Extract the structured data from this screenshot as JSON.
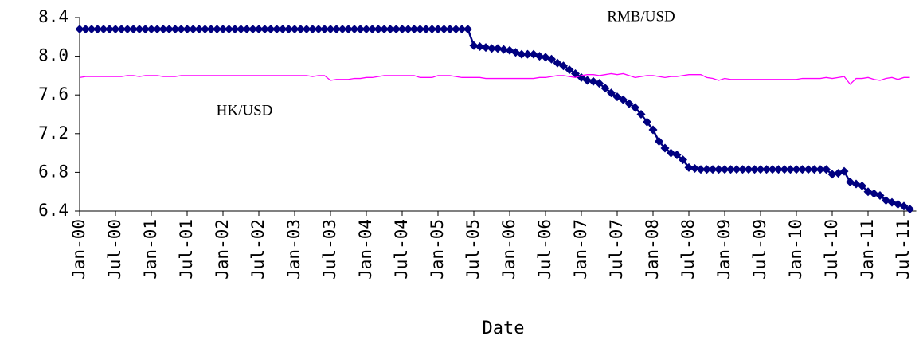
{
  "chart_data": {
    "type": "line",
    "x_label": "Date",
    "annotations": [
      "RMB/USD",
      "HK/USD"
    ],
    "categories": [
      "Jan-00",
      null,
      null,
      null,
      null,
      null,
      "Jul-00",
      null,
      null,
      null,
      null,
      null,
      "Jan-01",
      null,
      null,
      null,
      null,
      null,
      "Jul-01",
      null,
      null,
      null,
      null,
      null,
      "Jan-02",
      null,
      null,
      null,
      null,
      null,
      "Jul-02",
      null,
      null,
      null,
      null,
      null,
      "Jan-03",
      null,
      null,
      null,
      null,
      null,
      "Jul-03",
      null,
      null,
      null,
      null,
      null,
      "Jan-04",
      null,
      null,
      null,
      null,
      null,
      "Jul-04",
      null,
      null,
      null,
      null,
      null,
      "Jan-05",
      null,
      null,
      null,
      null,
      null,
      "Jul-05",
      null,
      null,
      null,
      null,
      null,
      "Jan-06",
      null,
      null,
      null,
      null,
      null,
      "Jul-06",
      null,
      null,
      null,
      null,
      null,
      "Jan-07",
      null,
      null,
      null,
      null,
      null,
      "Jul-07",
      null,
      null,
      null,
      null,
      null,
      "Jan-08",
      null,
      null,
      null,
      null,
      null,
      "Jul-08",
      null,
      null,
      null,
      null,
      null,
      "Jan-09",
      null,
      null,
      null,
      null,
      null,
      "Jul-09",
      null,
      null,
      null,
      null,
      null,
      "Jan-10",
      null,
      null,
      null,
      null,
      null,
      "Jul-10",
      null,
      null,
      null,
      null,
      null,
      "Jan-11",
      null,
      null,
      null,
      null,
      null,
      "Jul-11",
      null
    ],
    "series": [
      {
        "name": "RMB/USD",
        "color": "#000080",
        "marker": "diamond",
        "values": [
          8.28,
          8.28,
          8.28,
          8.28,
          8.28,
          8.28,
          8.28,
          8.28,
          8.28,
          8.28,
          8.28,
          8.28,
          8.28,
          8.28,
          8.28,
          8.28,
          8.28,
          8.28,
          8.28,
          8.28,
          8.28,
          8.28,
          8.28,
          8.28,
          8.28,
          8.28,
          8.28,
          8.28,
          8.28,
          8.28,
          8.28,
          8.28,
          8.28,
          8.28,
          8.28,
          8.28,
          8.28,
          8.28,
          8.28,
          8.28,
          8.28,
          8.28,
          8.28,
          8.28,
          8.28,
          8.28,
          8.28,
          8.28,
          8.28,
          8.28,
          8.28,
          8.28,
          8.28,
          8.28,
          8.28,
          8.28,
          8.28,
          8.28,
          8.28,
          8.28,
          8.28,
          8.28,
          8.28,
          8.28,
          8.28,
          8.28,
          8.11,
          8.1,
          8.09,
          8.08,
          8.08,
          8.07,
          8.06,
          8.04,
          8.02,
          8.02,
          8.02,
          8.0,
          7.99,
          7.97,
          7.93,
          7.9,
          7.86,
          7.82,
          7.78,
          7.75,
          7.74,
          7.72,
          7.67,
          7.62,
          7.58,
          7.55,
          7.51,
          7.47,
          7.4,
          7.32,
          7.24,
          7.12,
          7.05,
          7.0,
          6.98,
          6.93,
          6.85,
          6.84,
          6.83,
          6.83,
          6.83,
          6.83,
          6.83,
          6.83,
          6.83,
          6.83,
          6.83,
          6.83,
          6.83,
          6.83,
          6.83,
          6.83,
          6.83,
          6.83,
          6.83,
          6.83,
          6.83,
          6.83,
          6.83,
          6.83,
          6.78,
          6.79,
          6.81,
          6.7,
          6.68,
          6.66,
          6.6,
          6.58,
          6.56,
          6.51,
          6.49,
          6.47,
          6.45,
          6.42
        ]
      },
      {
        "name": "HK/USD",
        "color": "#ff00ff",
        "marker": "none",
        "values": [
          7.78,
          7.79,
          7.79,
          7.79,
          7.79,
          7.79,
          7.79,
          7.79,
          7.8,
          7.8,
          7.79,
          7.8,
          7.8,
          7.8,
          7.79,
          7.79,
          7.79,
          7.8,
          7.8,
          7.8,
          7.8,
          7.8,
          7.8,
          7.8,
          7.8,
          7.8,
          7.8,
          7.8,
          7.8,
          7.8,
          7.8,
          7.8,
          7.8,
          7.8,
          7.8,
          7.8,
          7.8,
          7.8,
          7.8,
          7.79,
          7.8,
          7.8,
          7.75,
          7.76,
          7.76,
          7.76,
          7.77,
          7.77,
          7.78,
          7.78,
          7.79,
          7.8,
          7.8,
          7.8,
          7.8,
          7.8,
          7.8,
          7.78,
          7.78,
          7.78,
          7.8,
          7.8,
          7.8,
          7.79,
          7.78,
          7.78,
          7.78,
          7.78,
          7.77,
          7.77,
          7.77,
          7.77,
          7.77,
          7.77,
          7.77,
          7.77,
          7.77,
          7.78,
          7.78,
          7.79,
          7.8,
          7.8,
          7.79,
          7.78,
          7.8,
          7.81,
          7.81,
          7.8,
          7.81,
          7.82,
          7.81,
          7.82,
          7.8,
          7.78,
          7.79,
          7.8,
          7.8,
          7.79,
          7.78,
          7.79,
          7.79,
          7.8,
          7.81,
          7.81,
          7.81,
          7.78,
          7.77,
          7.75,
          7.77,
          7.76,
          7.76,
          7.76,
          7.76,
          7.76,
          7.76,
          7.76,
          7.76,
          7.76,
          7.76,
          7.76,
          7.76,
          7.77,
          7.77,
          7.77,
          7.77,
          7.78,
          7.77,
          7.78,
          7.79,
          7.71,
          7.77,
          7.77,
          7.78,
          7.76,
          7.75,
          7.77,
          7.78,
          7.76,
          7.78,
          7.78
        ]
      }
    ],
    "ylim": [
      6.4,
      8.4
    ],
    "yticks": [
      6.4,
      6.8,
      7.2,
      7.6,
      {
        "value": 8,
        "label": "8.0"
      },
      8.4
    ],
    "grid": false
  }
}
